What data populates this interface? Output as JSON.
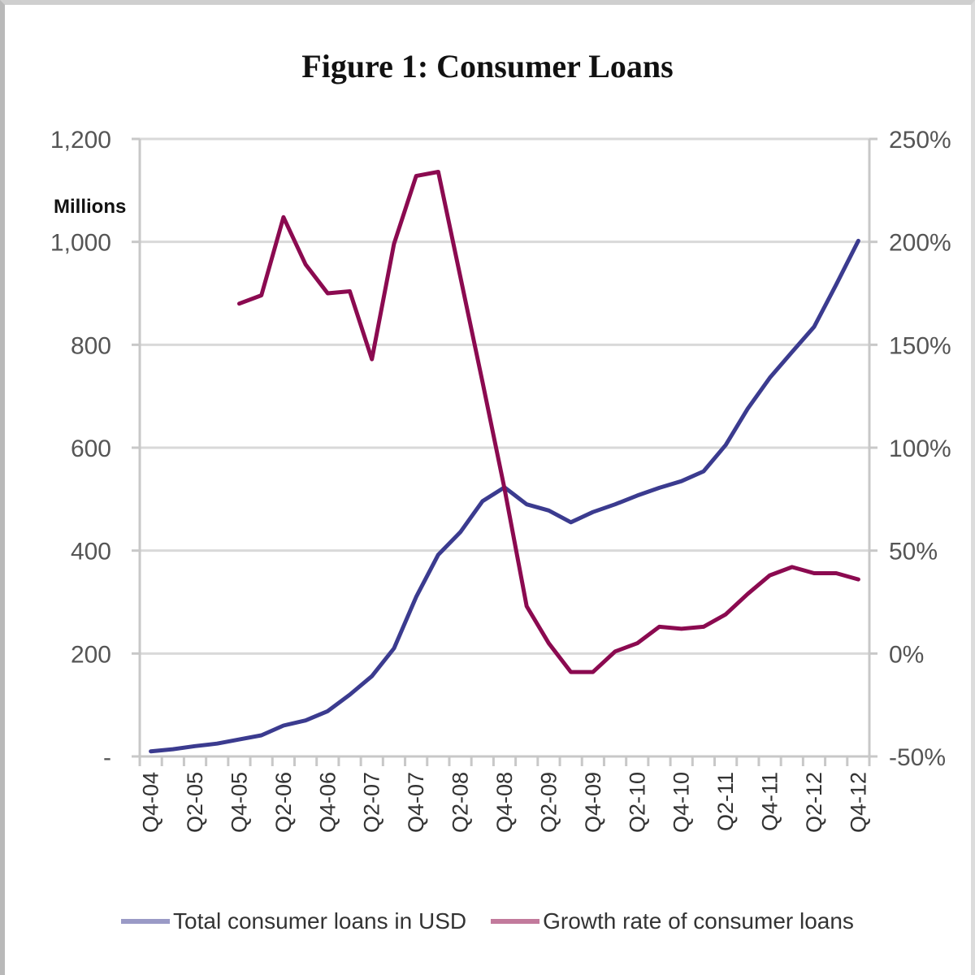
{
  "title": "Figure 1: Consumer Loans",
  "left_axis_unit": "Millions",
  "legend": {
    "series_1": "Total consumer loans in USD",
    "series_2": "Growth rate of consumer loans"
  },
  "colors": {
    "series_1": "#3b3b8f",
    "series_2": "#8b0a50",
    "grid": "#d9d9d9",
    "axis": "#c8c8c8",
    "tick_text": "#555555"
  },
  "chart_data": {
    "type": "line",
    "title": "Figure 1: Consumer Loans",
    "xlabel": "",
    "ylabel": "Millions",
    "y2label": "",
    "ylim": [
      0,
      1200
    ],
    "y2lim": [
      -0.5,
      2.5
    ],
    "yticks": [
      "-",
      "200",
      "400",
      "600",
      "800",
      "1,000",
      "1,200"
    ],
    "y2ticks": [
      "-50%",
      "0%",
      "50%",
      "100%",
      "150%",
      "200%",
      "250%"
    ],
    "grid": true,
    "legend_position": "bottom",
    "x": [
      "Q4-04",
      "Q1-05",
      "Q2-05",
      "Q3-05",
      "Q4-05",
      "Q1-06",
      "Q2-06",
      "Q3-06",
      "Q4-06",
      "Q1-07",
      "Q2-07",
      "Q3-07",
      "Q4-07",
      "Q1-08",
      "Q2-08",
      "Q3-08",
      "Q4-08",
      "Q1-09",
      "Q2-09",
      "Q3-09",
      "Q4-09",
      "Q1-10",
      "Q2-10",
      "Q3-10",
      "Q4-10",
      "Q1-11",
      "Q2-11",
      "Q3-11",
      "Q4-11",
      "Q1-12",
      "Q2-12",
      "Q3-12",
      "Q4-12"
    ],
    "x_tick_labels": [
      "Q4-04",
      "Q2-05",
      "Q4-05",
      "Q2-06",
      "Q4-06",
      "Q2-07",
      "Q4-07",
      "Q2-08",
      "Q4-08",
      "Q2-09",
      "Q4-09",
      "Q2-10",
      "Q4-10",
      "Q2-11",
      "Q4-11",
      "Q2-12",
      "Q4-12"
    ],
    "series": [
      {
        "name": "Total consumer loans in USD",
        "axis": "left",
        "values": [
          10,
          14,
          20,
          25,
          33,
          41,
          60,
          70,
          88,
          120,
          156,
          210,
          310,
          392,
          436,
          496,
          523,
          490,
          478,
          455,
          475,
          490,
          507,
          522,
          535,
          554,
          605,
          676,
          736,
          786,
          835,
          917,
          1002
        ]
      },
      {
        "name": "Growth rate of consumer loans",
        "axis": "right",
        "unit": "%",
        "values": [
          null,
          null,
          null,
          null,
          170,
          174,
          212,
          189,
          175,
          176,
          143,
          199,
          232,
          234,
          183,
          132,
          80,
          23,
          5,
          -9,
          -9,
          1,
          5,
          13,
          12,
          13,
          19,
          29,
          38,
          42,
          39,
          39,
          36
        ]
      }
    ]
  }
}
